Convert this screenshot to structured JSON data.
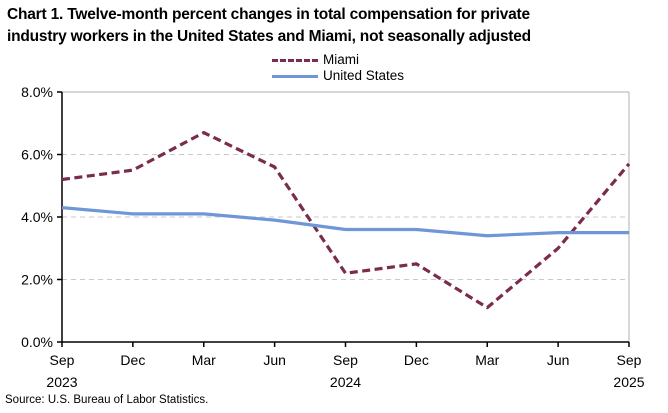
{
  "page": {
    "title_lines": [
      "Chart 1. Twelve-month percent changes in total compensation for private",
      "industry workers in the United States and Miami, not seasonally adjusted"
    ],
    "source": "Source: U.S. Bureau of Labor Statistics."
  },
  "chart_data": {
    "type": "line",
    "title": "Chart 1. Twelve-month percent changes in total compensation for private industry workers in the United States and Miami, not seasonally adjusted",
    "categories": [
      "Sep 2023",
      "Dec 2023",
      "Mar 2024",
      "Jun 2024",
      "Sep 2024",
      "Dec 2024",
      "Mar 2025",
      "Jun 2025",
      "Sep 2025"
    ],
    "x_ticks": [
      {
        "month": "Sep",
        "year": "2023"
      },
      {
        "month": "Dec",
        "year": ""
      },
      {
        "month": "Mar",
        "year": ""
      },
      {
        "month": "Jun",
        "year": ""
      },
      {
        "month": "Sep",
        "year": "2024"
      },
      {
        "month": "Dec",
        "year": ""
      },
      {
        "month": "Mar",
        "year": ""
      },
      {
        "month": "Jun",
        "year": ""
      },
      {
        "month": "Sep",
        "year": "2025"
      }
    ],
    "series": [
      {
        "name": "Miami",
        "line_style": "dashed",
        "color": "#7b2b4e",
        "values": [
          5.2,
          5.5,
          6.7,
          5.6,
          2.2,
          2.5,
          1.1,
          3.0,
          5.7
        ]
      },
      {
        "name": "United States",
        "line_style": "solid",
        "color": "#6f97d7",
        "values": [
          4.3,
          4.1,
          4.1,
          3.9,
          3.6,
          3.6,
          3.4,
          3.5,
          3.5
        ]
      }
    ],
    "ylabel": "",
    "xlabel": "",
    "ylim": [
      0,
      8
    ],
    "y_tick_step": 2,
    "y_tick_labels": [
      "0.0%",
      "2.0%",
      "4.0%",
      "6.0%",
      "8.0%"
    ],
    "grid": "horizontal dashed gridlines at 2.0, 4.0, 6.0",
    "legend_position": "top-center",
    "unit": "percent"
  },
  "colors": {
    "miami_line": "#7b2b4e",
    "us_line": "#6f97d7",
    "gridline": "#c9c9c9",
    "plot_border": "#bfbfbf",
    "axis": "#000000",
    "text": "#000000",
    "background": "#ffffff"
  }
}
